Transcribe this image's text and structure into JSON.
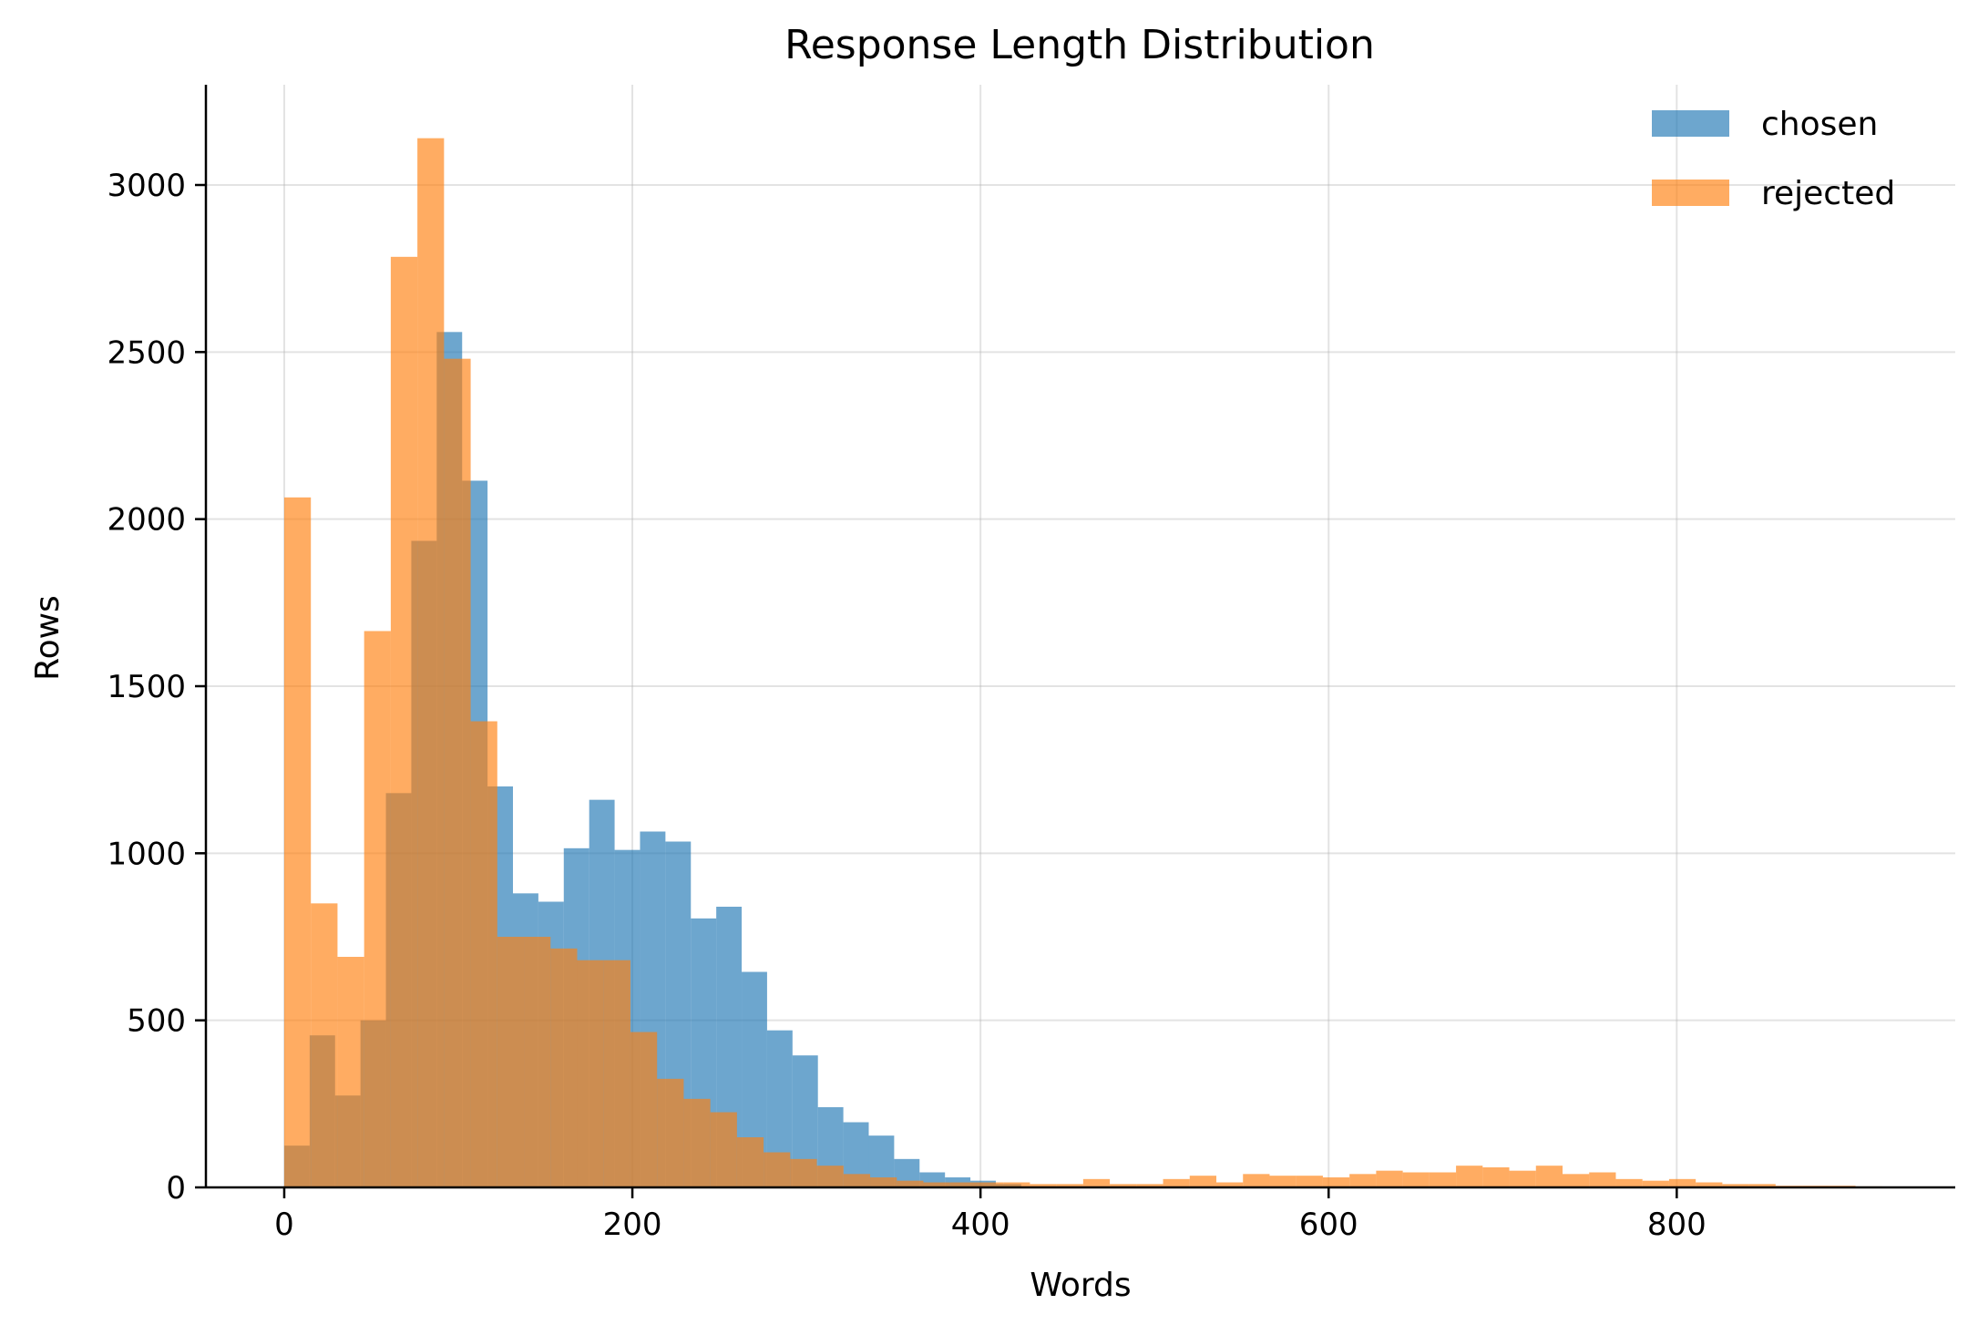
{
  "chart_data": {
    "type": "bar",
    "title": "Response Length Distribution",
    "xlabel": "Words",
    "ylabel": "Rows",
    "xlim": [
      -45,
      960
    ],
    "ylim": [
      0,
      3300
    ],
    "xticks": [
      0,
      200,
      400,
      600,
      800
    ],
    "yticks": [
      0,
      500,
      1000,
      1500,
      2000,
      2500,
      3000
    ],
    "grid": true,
    "legend_position": "top-right",
    "series": [
      {
        "name": "chosen",
        "color": "#1f77b4",
        "opacity": 0.65,
        "bin_edges": [
          0,
          14.6,
          29.2,
          43.8,
          58.4,
          73,
          87.6,
          102.2,
          116.8,
          131.4,
          146,
          160.6,
          175.2,
          189.8,
          204.4,
          219,
          233.6,
          248.2,
          262.8,
          277.4,
          292,
          306.6,
          321.2,
          335.8,
          350.4,
          365,
          379.6,
          394.2,
          408.8,
          423.4
        ],
        "counts": [
          125,
          455,
          275,
          500,
          1180,
          1935,
          2560,
          2115,
          1200,
          880,
          855,
          1015,
          1160,
          1010,
          1065,
          1035,
          805,
          840,
          645,
          470,
          395,
          240,
          195,
          155,
          85,
          45,
          30,
          20,
          10
        ]
      },
      {
        "name": "rejected",
        "color": "#ff7f0e",
        "opacity": 0.65,
        "bin_edges": [
          0,
          15.3,
          30.6,
          45.9,
          61.2,
          76.5,
          91.8,
          107.1,
          122.4,
          137.7,
          153,
          168.3,
          183.6,
          198.9,
          214.2,
          229.5,
          244.8,
          260.1,
          275.4,
          290.7,
          306,
          321.3,
          336.6,
          351.9,
          367.2,
          382.5,
          397.8,
          413.1,
          428.4,
          443.7,
          459,
          474.3,
          489.6,
          504.9,
          520.2,
          535.5,
          550.8,
          566.1,
          581.4,
          596.7,
          612,
          627.3,
          642.6,
          657.9,
          673.2,
          688.5,
          703.8,
          719.1,
          734.4,
          749.7,
          765,
          780.3,
          795.6,
          810.9,
          826.2,
          841.5,
          856.8,
          872.1,
          887.4,
          902.7,
          918
        ],
        "counts": [
          2065,
          850,
          690,
          1665,
          2785,
          3140,
          2480,
          1395,
          750,
          750,
          715,
          680,
          680,
          465,
          325,
          265,
          225,
          150,
          105,
          85,
          65,
          40,
          30,
          20,
          15,
          15,
          15,
          15,
          10,
          10,
          25,
          10,
          10,
          25,
          35,
          15,
          40,
          35,
          35,
          30,
          40,
          50,
          45,
          45,
          65,
          60,
          50,
          65,
          40,
          45,
          25,
          20,
          25,
          15,
          10,
          10,
          5,
          5,
          5,
          3
        ]
      }
    ]
  }
}
